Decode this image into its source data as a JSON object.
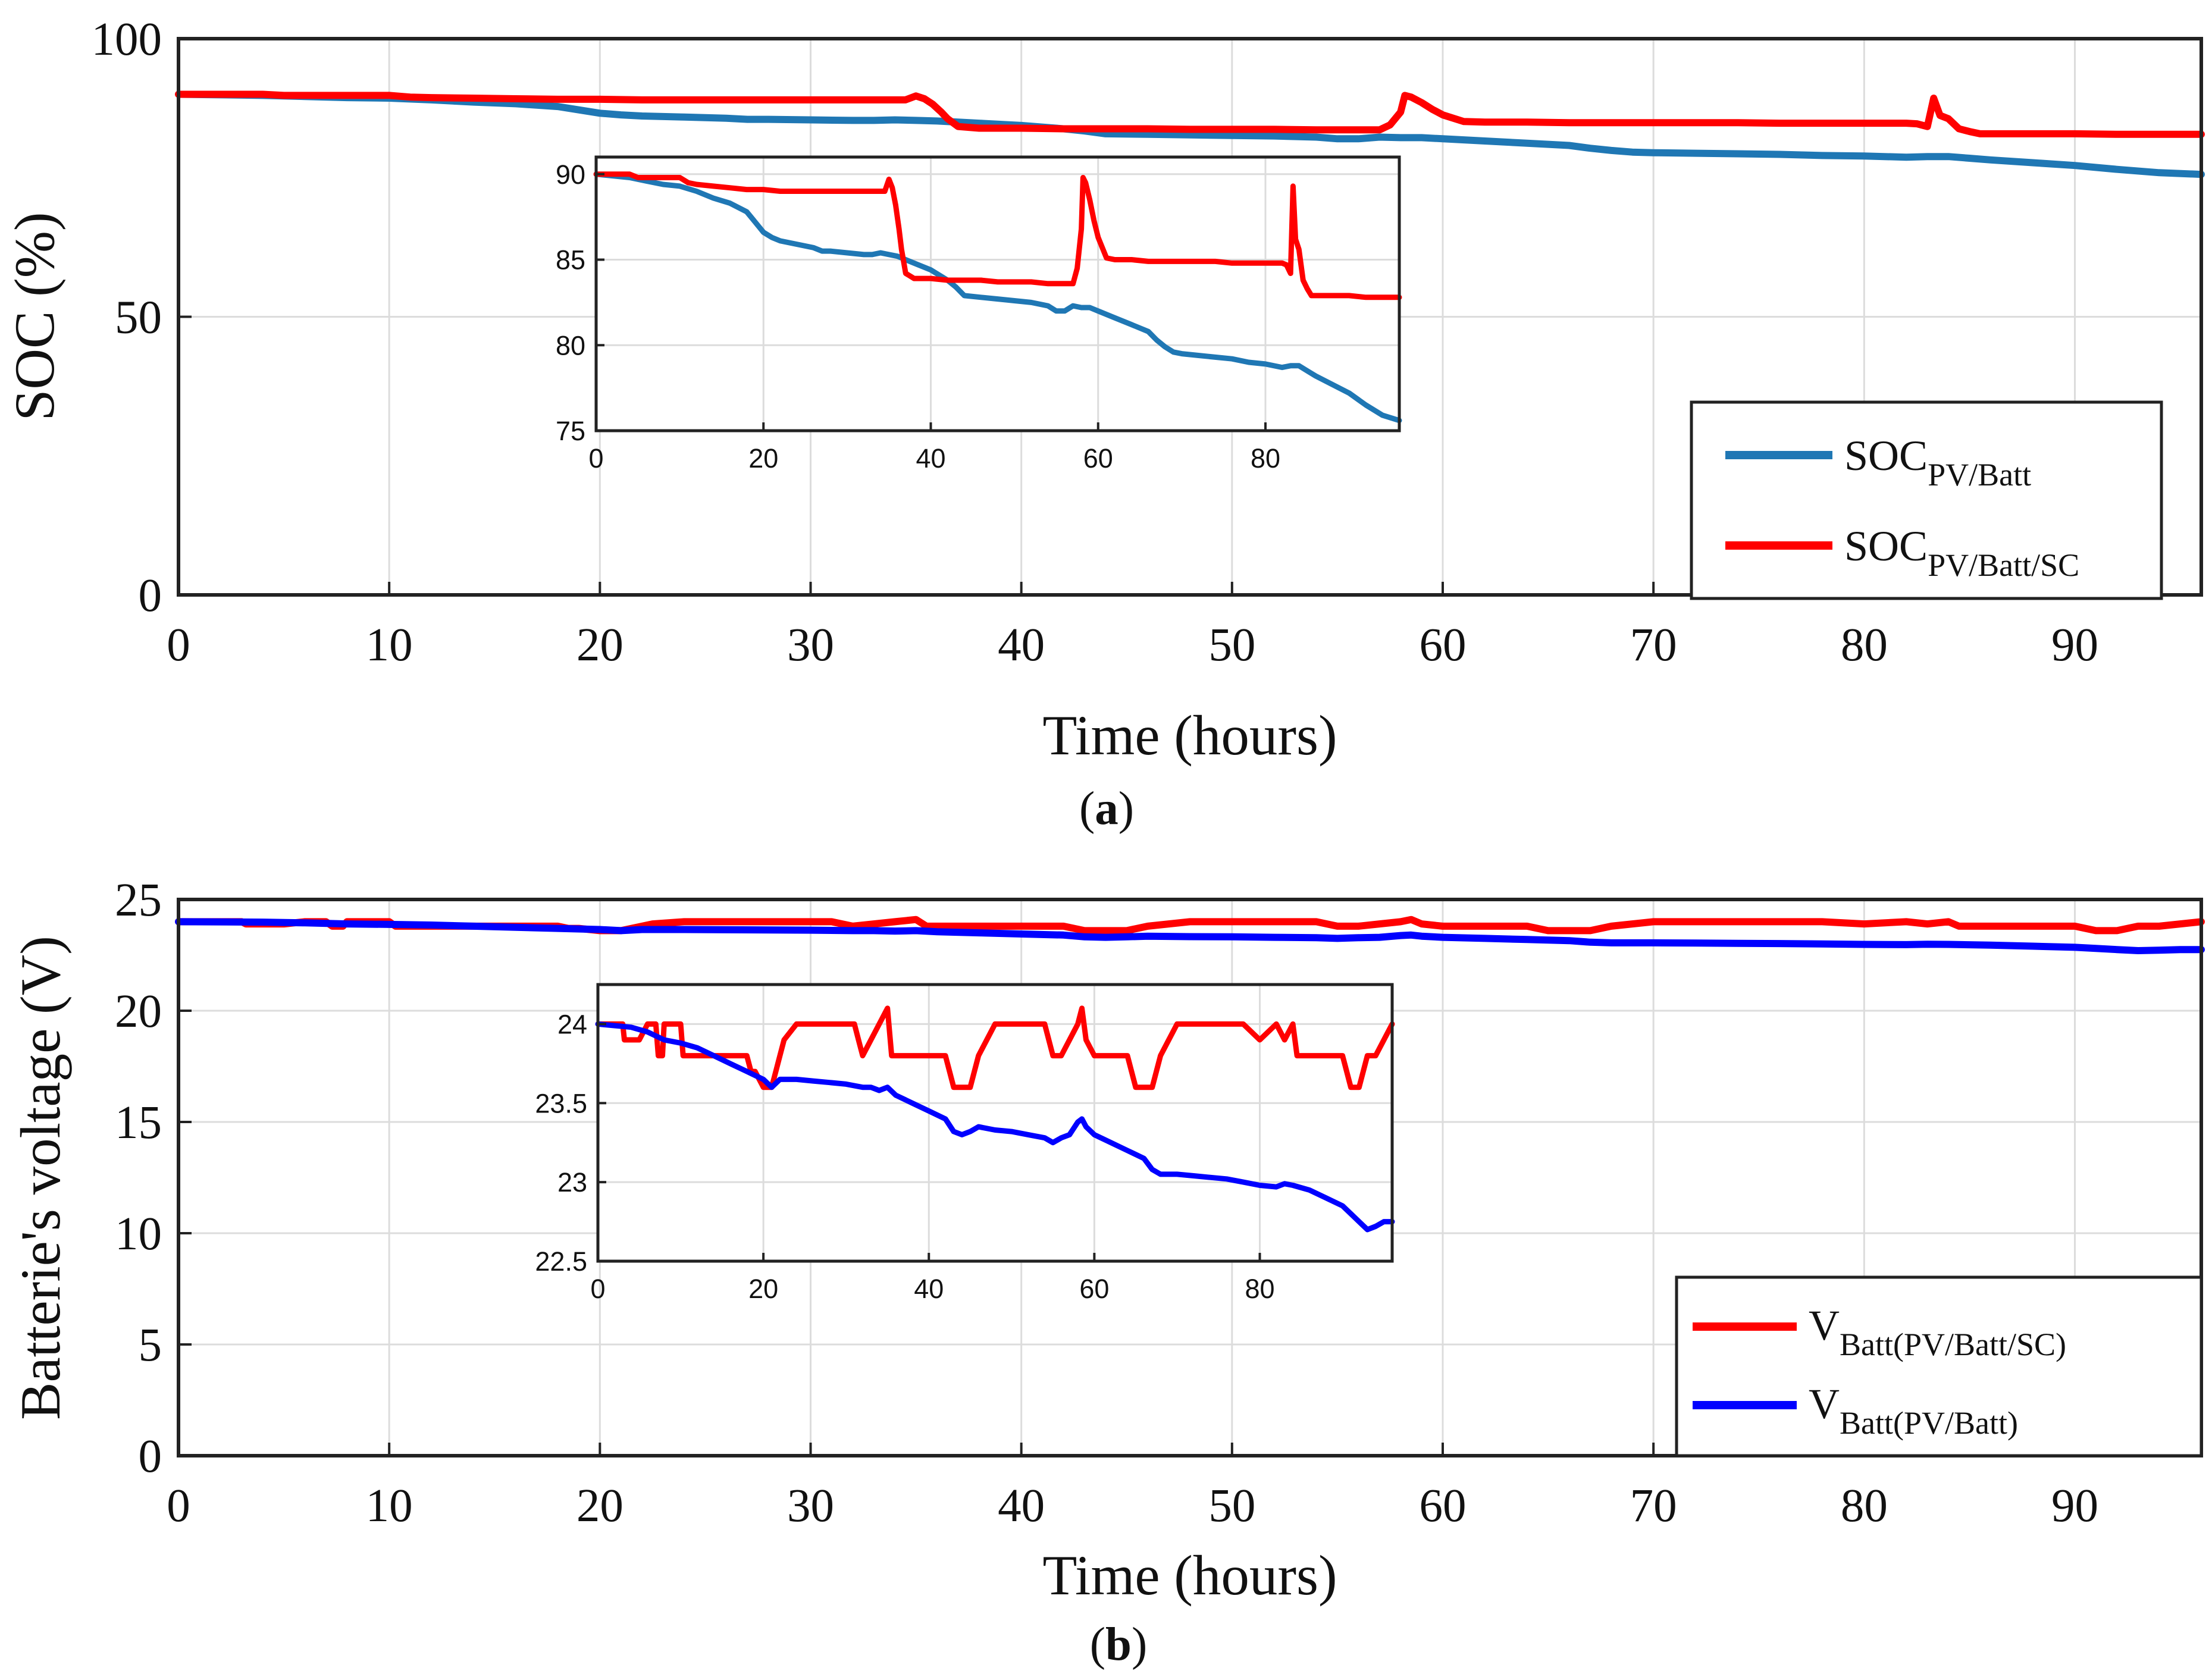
{
  "chart_data": [
    {
      "type": "line",
      "panel_label": "a",
      "xlabel": "Time (hours)",
      "ylabel": "SOC (%)",
      "xlim": [
        0,
        96
      ],
      "ylim": [
        0,
        100
      ],
      "xticks": [
        0,
        10,
        20,
        30,
        40,
        50,
        60,
        70,
        80,
        90
      ],
      "yticks": [
        0,
        50,
        100
      ],
      "grid": true,
      "legend_position": "bottom-right",
      "series": [
        {
          "name_main": "SOC",
          "name_sub": "PV/Batt",
          "color": "#1f77b4",
          "x": [
            0,
            2,
            4,
            6,
            8,
            10,
            12,
            14,
            16,
            18,
            19,
            20,
            21,
            22,
            24,
            26,
            27,
            28,
            30,
            32,
            33,
            34,
            35,
            36,
            37,
            38,
            40,
            42,
            43,
            44,
            46,
            48,
            50,
            52,
            54,
            55,
            56,
            57,
            58,
            59,
            60,
            62,
            64,
            66,
            67,
            68,
            69,
            70,
            72,
            74,
            76,
            78,
            80,
            82,
            83,
            84,
            85,
            86,
            88,
            90,
            92,
            94,
            96
          ],
          "y": [
            90,
            89.9,
            89.8,
            89.6,
            89.4,
            89.3,
            89.0,
            88.6,
            88.3,
            87.8,
            87.2,
            86.6,
            86.3,
            86.1,
            85.9,
            85.7,
            85.5,
            85.5,
            85.4,
            85.3,
            85.3,
            85.4,
            85.3,
            85.2,
            85.0,
            84.8,
            84.4,
            83.8,
            83.4,
            82.9,
            82.8,
            82.7,
            82.6,
            82.5,
            82.3,
            82.0,
            82.0,
            82.3,
            82.2,
            82.2,
            82.0,
            81.6,
            81.2,
            80.8,
            80.3,
            79.9,
            79.6,
            79.5,
            79.4,
            79.3,
            79.2,
            79.0,
            78.9,
            78.7,
            78.8,
            78.8,
            78.5,
            78.2,
            77.7,
            77.2,
            76.5,
            75.9,
            75.6
          ]
        },
        {
          "name_main": "SOC",
          "name_sub": "PV/Batt/SC",
          "color": "#ff0000",
          "x": [
            0,
            4,
            5,
            8,
            10,
            11,
            12,
            14,
            16,
            18,
            20,
            22,
            24,
            26,
            28,
            30,
            32,
            33,
            34,
            34.5,
            35,
            35.4,
            35.8,
            36.2,
            36.5,
            37,
            38,
            40,
            42,
            44,
            46,
            48,
            50,
            52,
            54,
            55,
            56,
            57,
            57.5,
            58,
            58.2,
            58.5,
            59,
            59.5,
            60,
            61,
            62,
            64,
            66,
            68,
            70,
            72,
            74,
            76,
            78,
            80,
            82,
            82.5,
            83,
            83.3,
            83.6,
            84,
            84.5,
            85,
            85.5,
            86,
            88,
            90,
            92,
            94,
            96
          ],
          "y": [
            90,
            90,
            89.8,
            89.8,
            89.8,
            89.5,
            89.4,
            89.3,
            89.2,
            89.1,
            89.1,
            89.0,
            89.0,
            89.0,
            89.0,
            89.0,
            89.0,
            89.0,
            89.0,
            89.0,
            89.7,
            89.2,
            88.2,
            86.8,
            85.6,
            84.2,
            83.9,
            83.9,
            83.8,
            83.8,
            83.8,
            83.7,
            83.7,
            83.7,
            83.6,
            83.6,
            83.6,
            83.6,
            84.5,
            86.8,
            89.8,
            89.5,
            88.5,
            87.3,
            86.3,
            85.1,
            85.0,
            85.0,
            84.9,
            84.9,
            84.9,
            84.9,
            84.9,
            84.8,
            84.8,
            84.8,
            84.8,
            84.7,
            84.2,
            89.3,
            86.2,
            85.6,
            83.8,
            83.3,
            82.9,
            82.9,
            82.9,
            82.9,
            82.8,
            82.8,
            82.8
          ]
        }
      ],
      "inset": {
        "xlim": [
          0,
          96
        ],
        "ylim": [
          75,
          91
        ],
        "xticks": [
          0,
          20,
          40,
          60,
          80
        ],
        "yticks": [
          75,
          80,
          85,
          90
        ]
      }
    },
    {
      "type": "line",
      "panel_label": "b",
      "xlabel": "Time (hours)",
      "ylabel": "Batterie's voltage (V)",
      "xlim": [
        0,
        96
      ],
      "ylim": [
        0,
        25
      ],
      "xticks": [
        0,
        10,
        20,
        30,
        40,
        50,
        60,
        70,
        80,
        90
      ],
      "yticks": [
        0,
        5,
        10,
        15,
        20,
        25
      ],
      "grid": true,
      "legend_position": "bottom-right",
      "series": [
        {
          "name_main": "V",
          "name_sub": "Batt(PV/Batt/SC)",
          "color": "#ff0000",
          "x": [
            0,
            3,
            3.2,
            5,
            6,
            7,
            7.3,
            7.8,
            8,
            9,
            10,
            10.3,
            12,
            14,
            16,
            17,
            18,
            18.5,
            19,
            20,
            21,
            21.5,
            22,
            22.5,
            24,
            26,
            28,
            30,
            31,
            31.5,
            32,
            33,
            34,
            35,
            35.5,
            36,
            37,
            38,
            40,
            42,
            43,
            45,
            46,
            47,
            48,
            50,
            54,
            55,
            56,
            57,
            58,
            58.5,
            59,
            60,
            61,
            62,
            64,
            65,
            66,
            67,
            68,
            69,
            70,
            72,
            74,
            76,
            78,
            80,
            82,
            83,
            84,
            84.5,
            85,
            86,
            88,
            90,
            91,
            91.5,
            92,
            93,
            94,
            95,
            96
          ],
          "y": [
            24.0,
            24.0,
            23.9,
            23.9,
            24.0,
            24.0,
            23.8,
            23.8,
            24.0,
            24.0,
            24.0,
            23.8,
            23.8,
            23.8,
            23.8,
            23.8,
            23.8,
            23.7,
            23.7,
            23.6,
            23.6,
            23.7,
            23.8,
            23.9,
            24.0,
            24.0,
            24.0,
            24.0,
            24.0,
            23.9,
            23.8,
            23.9,
            24.0,
            24.1,
            23.8,
            23.8,
            23.8,
            23.8,
            23.8,
            23.8,
            23.6,
            23.6,
            23.8,
            23.9,
            24.0,
            24.0,
            24.0,
            23.8,
            23.8,
            23.9,
            24.0,
            24.1,
            23.9,
            23.8,
            23.8,
            23.8,
            23.8,
            23.6,
            23.6,
            23.6,
            23.8,
            23.9,
            24.0,
            24.0,
            24.0,
            24.0,
            24.0,
            23.9,
            24.0,
            23.9,
            24.0,
            23.8,
            23.8,
            23.8,
            23.8,
            23.8,
            23.6,
            23.6,
            23.6,
            23.8,
            23.8,
            23.9,
            24.0
          ]
        },
        {
          "name_main": "V",
          "name_sub": "Batt(PV/Batt)",
          "color": "#0000ff",
          "x": [
            0,
            4,
            6,
            8,
            10,
            12,
            14,
            16,
            18,
            20,
            21,
            22,
            24,
            26,
            28,
            30,
            32,
            33,
            34,
            35,
            36,
            38,
            40,
            42,
            43,
            44,
            45,
            46,
            48,
            50,
            52,
            54,
            55,
            56,
            57,
            58,
            58.5,
            59,
            60,
            62,
            64,
            66,
            67,
            68,
            70,
            72,
            74,
            76,
            78,
            80,
            82,
            83,
            84,
            86,
            88,
            90,
            91,
            92,
            93,
            94,
            95,
            96
          ],
          "y": [
            24.0,
            23.98,
            23.95,
            23.9,
            23.88,
            23.85,
            23.8,
            23.75,
            23.7,
            23.65,
            23.6,
            23.65,
            23.65,
            23.64,
            23.63,
            23.62,
            23.6,
            23.6,
            23.58,
            23.6,
            23.55,
            23.5,
            23.45,
            23.4,
            23.32,
            23.3,
            23.32,
            23.35,
            23.33,
            23.32,
            23.3,
            23.28,
            23.25,
            23.28,
            23.3,
            23.38,
            23.4,
            23.35,
            23.3,
            23.25,
            23.2,
            23.15,
            23.08,
            23.05,
            23.05,
            23.04,
            23.03,
            23.02,
            23.0,
            22.98,
            22.97,
            22.99,
            22.98,
            22.95,
            22.9,
            22.85,
            22.8,
            22.75,
            22.7,
            22.72,
            22.75,
            22.75
          ]
        }
      ],
      "inset": {
        "xlim": [
          0,
          96
        ],
        "ylim": [
          22.5,
          24.25
        ],
        "xticks": [
          0,
          20,
          40,
          60,
          80
        ],
        "yticks": [
          22.5,
          23,
          23.5,
          24
        ],
        "yticklabels": [
          "22.5",
          "23",
          "23.5",
          "24"
        ]
      }
    }
  ]
}
